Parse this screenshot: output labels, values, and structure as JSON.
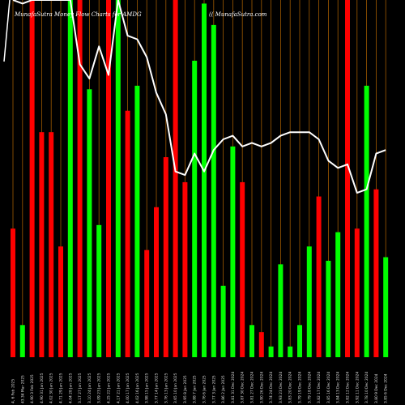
{
  "chart_data": {
    "type": "bar",
    "title": "MunafaSutra Money Flow  Charts for AMDG",
    "watermark": "(( MunafaSutra.com",
    "ylim": [
      0,
      100
    ],
    "colors": {
      "up": "#00ff00",
      "down": "#ff0000",
      "grid": "#a05a00",
      "line": "#ffffff",
      "background": "#000000"
    },
    "bars": [
      {
        "v": 36,
        "c": "down"
      },
      {
        "v": 9,
        "c": "up"
      },
      {
        "v": 100,
        "c": "down"
      },
      {
        "v": 63,
        "c": "down"
      },
      {
        "v": 63,
        "c": "down"
      },
      {
        "v": 31,
        "c": "down"
      },
      {
        "v": 100,
        "c": "up"
      },
      {
        "v": 100,
        "c": "down"
      },
      {
        "v": 75,
        "c": "up"
      },
      {
        "v": 37,
        "c": "up"
      },
      {
        "v": 100,
        "c": "down"
      },
      {
        "v": 100,
        "c": "up"
      },
      {
        "v": 69,
        "c": "down"
      },
      {
        "v": 76,
        "c": "up"
      },
      {
        "v": 30,
        "c": "down"
      },
      {
        "v": 42,
        "c": "down"
      },
      {
        "v": 56,
        "c": "down"
      },
      {
        "v": 100,
        "c": "down"
      },
      {
        "v": 49,
        "c": "down"
      },
      {
        "v": 83,
        "c": "up"
      },
      {
        "v": 99,
        "c": "up"
      },
      {
        "v": 93,
        "c": "up"
      },
      {
        "v": 20,
        "c": "up"
      },
      {
        "v": 59,
        "c": "up"
      },
      {
        "v": 49,
        "c": "down"
      },
      {
        "v": 9,
        "c": "up"
      },
      {
        "v": 7,
        "c": "down"
      },
      {
        "v": 3,
        "c": "up"
      },
      {
        "v": 26,
        "c": "up"
      },
      {
        "v": 3,
        "c": "up"
      },
      {
        "v": 9,
        "c": "up"
      },
      {
        "v": 31,
        "c": "up"
      },
      {
        "v": 45,
        "c": "down"
      },
      {
        "v": 27,
        "c": "up"
      },
      {
        "v": 35,
        "c": "up"
      },
      {
        "v": 100,
        "c": "down"
      },
      {
        "v": 36,
        "c": "down"
      },
      {
        "v": 76,
        "c": "up"
      },
      {
        "v": 47,
        "c": "down"
      },
      {
        "v": 28,
        "c": "up"
      }
    ],
    "line": [
      100,
      99,
      100,
      100,
      100,
      100,
      100,
      82,
      78,
      87,
      79,
      100,
      90,
      89,
      84,
      74,
      68,
      52,
      51,
      57,
      52,
      58,
      61,
      62,
      59,
      60,
      59,
      60,
      62,
      63,
      63,
      63,
      61,
      55,
      53,
      54,
      46,
      47,
      57,
      58
    ],
    "x_labels": [
      "4, 6 Feb 2025",
      "43.34 Mar 2025",
      "4.90 3 Feb 2025",
      "4.90 31 Jan 2025",
      "4.02 30 Jan 2025",
      "4.71 29 Jan 2025",
      "4.04 28 Jan 2025",
      "3.17 27 Jan 2025",
      "3.10 24 Jan 2025",
      "3.09 23 Jan 2025",
      "4.25 22 Jan 2025",
      "4.17 21 Jan 2025",
      "4.00 17 Jan 2025",
      "4.02 16 Jan 2025",
      "3.98 15 Jan 2025",
      "3.77 14 Jan 2025",
      "3.76 13 Jan 2025",
      "3.65 10 Jan 2025",
      "3.95 8 Jan 2025",
      "3.88 7 Jan 2025",
      "3.76 6 Jan 2025",
      "3.77 3 Jan 2025",
      "3.86 2 Jan 2025",
      "3.81 31 Dec 2024",
      "3.87 30 Dec 2024",
      "3.81 27 Dec 2024",
      "3.90 26 Dec 2024",
      "3.74 24 Dec 2024",
      "3.93 23 Dec 2024",
      "3.83 20 Dec 2024",
      "3.79 19 Dec 2024",
      "3.79 18 Dec 2024",
      "3.82 17 Dec 2024",
      "3.85 16 Dec 2024",
      "3.84 13 Dec 2024",
      "3.82 12 Dec 2024",
      "3.92 11 Dec 2024",
      "3.78 10 Dec 2024",
      "3.80 9 Dec 2024",
      "3.85 6 Dec 2024"
    ]
  }
}
